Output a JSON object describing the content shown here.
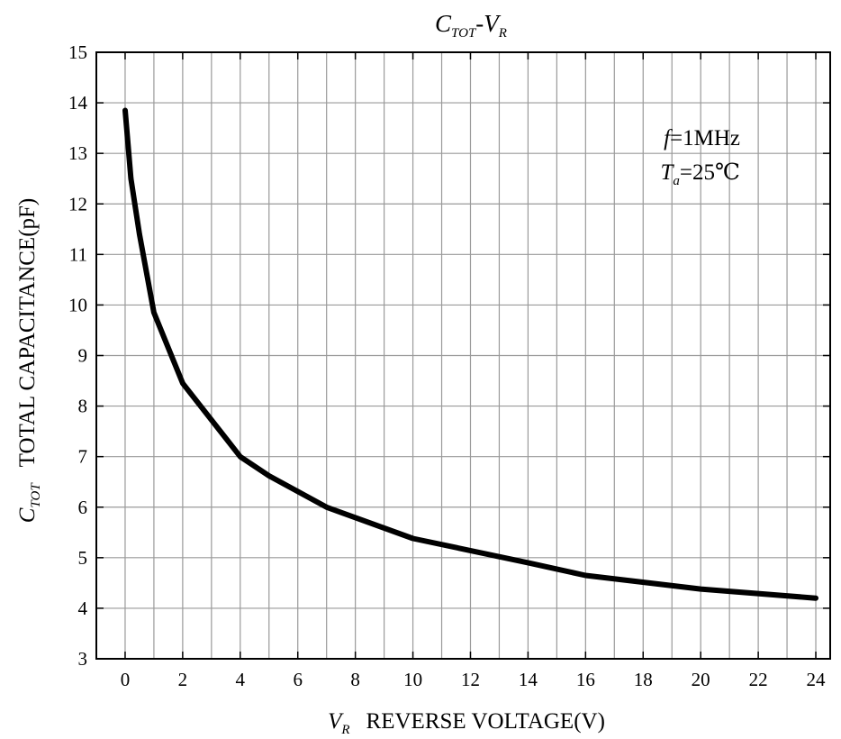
{
  "chart_data": {
    "type": "line",
    "title": {
      "main": "C",
      "main_sub": "TOT",
      "sep": "-V",
      "sep_sub": "R"
    },
    "xlabel": {
      "symbol": "V",
      "symbol_sub": "R",
      "text": "REVERSE VOLTAGE(V)"
    },
    "ylabel": {
      "symbol": "C",
      "symbol_sub": "TOT",
      "text": "TOTAL CAPACITANCE(pF)"
    },
    "xlim": [
      -1,
      24.5
    ],
    "ylim": [
      3,
      15
    ],
    "xticks": [
      0,
      2,
      4,
      6,
      8,
      10,
      12,
      14,
      16,
      18,
      20,
      22,
      24
    ],
    "yticks": [
      3,
      4,
      5,
      6,
      7,
      8,
      9,
      10,
      11,
      12,
      13,
      14,
      15
    ],
    "grid": true,
    "annotations": [
      {
        "italic": "f",
        "sub": "",
        "rest": "=1MHz"
      },
      {
        "italic": "T",
        "sub": "a",
        "rest": "=25℃"
      }
    ],
    "series": [
      {
        "x": [
          0,
          0.2,
          0.5,
          1,
          2,
          4,
          5,
          7,
          10,
          14,
          16,
          20,
          24
        ],
        "y": [
          13.85,
          12.5,
          11.4,
          9.85,
          8.45,
          7.0,
          6.62,
          6.0,
          5.38,
          4.9,
          4.65,
          4.38,
          4.2
        ]
      }
    ]
  }
}
